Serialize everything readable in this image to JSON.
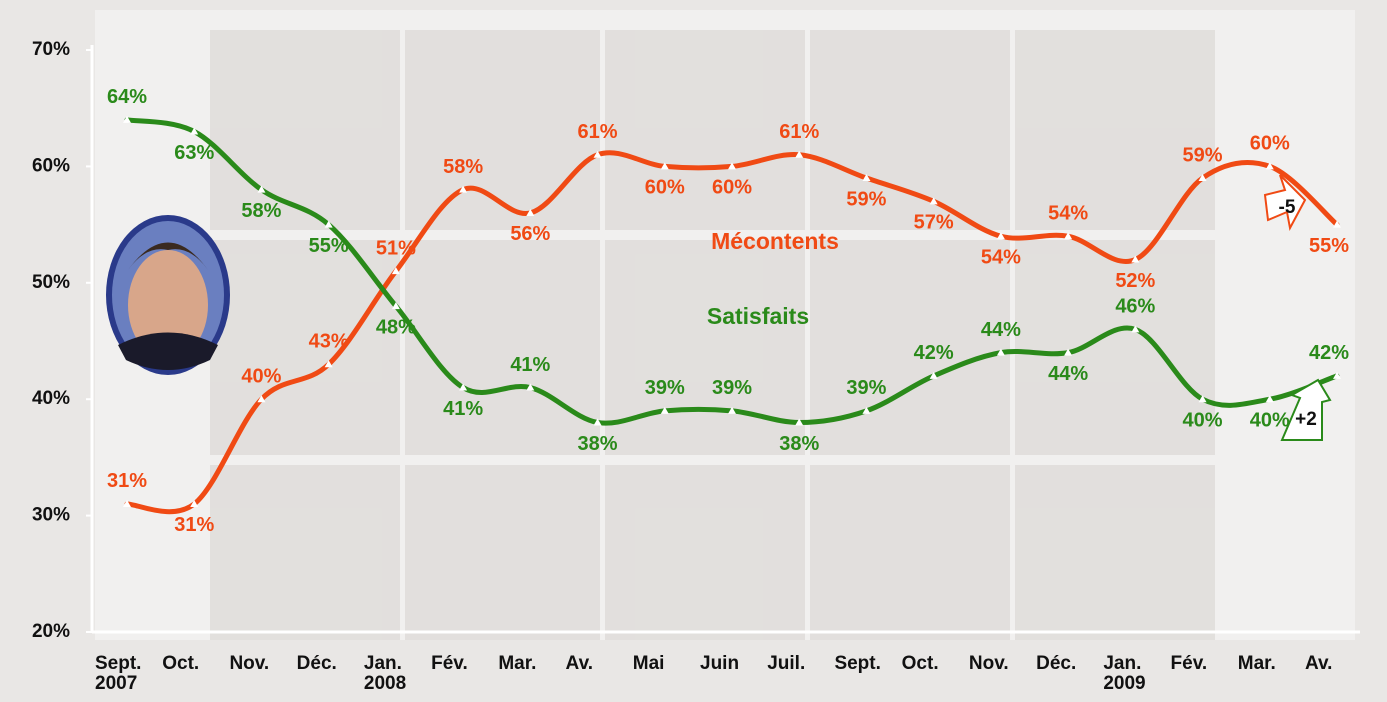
{
  "chart_data": {
    "type": "line",
    "categories": [
      "Sept.\n2007",
      "Oct.",
      "Nov.",
      "Déc.",
      "Jan.\n2008",
      "Fév.",
      "Mar.",
      "Av.",
      "Mai",
      "Juin",
      "Juil.",
      "Sept.",
      "Oct.",
      "Nov.",
      "Déc.",
      "Jan.\n2009",
      "Fév.",
      "Mar.",
      "Av."
    ],
    "series": [
      {
        "name": "Mécontents",
        "color": "#f04a14",
        "values": [
          31,
          31,
          40,
          43,
          51,
          58,
          56,
          61,
          60,
          60,
          61,
          59,
          57,
          54,
          54,
          52,
          59,
          60,
          55
        ],
        "value_labels": [
          "31%",
          "31%",
          "40%",
          "43%",
          "51%",
          "58%",
          "56%",
          "61%",
          "60%",
          "60%",
          "61%",
          "59%",
          "57%",
          "54%",
          "54%",
          "52%",
          "59%",
          "60%",
          "55%"
        ]
      },
      {
        "name": "Satisfaits",
        "color": "#2a8a1a",
        "values": [
          64,
          63,
          58,
          55,
          48,
          41,
          41,
          38,
          39,
          39,
          38,
          39,
          42,
          44,
          44,
          46,
          40,
          40,
          42
        ],
        "value_labels": [
          "64%",
          "63%",
          "58%",
          "55%",
          "48%",
          "41%",
          "41%",
          "38%",
          "39%",
          "39%",
          "38%",
          "39%",
          "42%",
          "44%",
          "44%",
          "46%",
          "40%",
          "40%",
          "42%"
        ]
      }
    ],
    "annotations": [
      "-5",
      "+2"
    ],
    "ylim": [
      20,
      70
    ],
    "yticks": [
      {
        "value": 20,
        "label": "20%"
      },
      {
        "value": 30,
        "label": "30%"
      },
      {
        "value": 40,
        "label": "40%"
      },
      {
        "value": 50,
        "label": "50%"
      },
      {
        "value": 60,
        "label": "60%"
      },
      {
        "value": 70,
        "label": "70%"
      }
    ]
  }
}
